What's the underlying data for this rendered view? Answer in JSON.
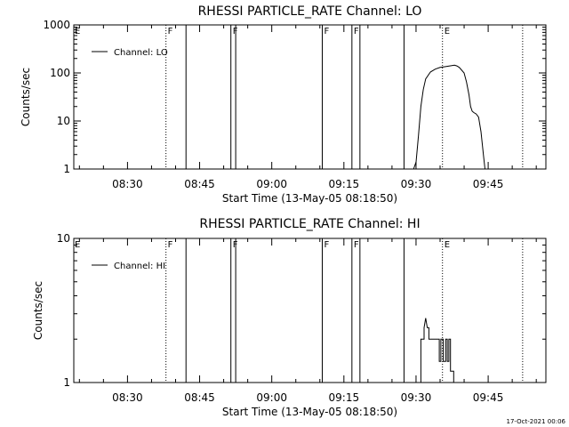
{
  "footer": {
    "timestamp": "17-Oct-2021 00:06"
  },
  "chart_data": [
    {
      "type": "line",
      "title": "RHESSI PARTICLE_RATE Channel: LO",
      "xlabel": "Start Time (13-May-05 08:18:50)",
      "ylabel": "Counts/sec",
      "yscale": "log",
      "ylim": [
        1,
        1000
      ],
      "xlim": [
        "08:18:50",
        "09:57:00"
      ],
      "x_ticks": [
        "08:30",
        "08:45",
        "09:00",
        "09:15",
        "09:30",
        "09:45"
      ],
      "y_ticks": [
        "1",
        "10",
        "100",
        "1000"
      ],
      "grid": false,
      "legend": {
        "position": "top-left",
        "entries": [
          "Channel: LO"
        ]
      },
      "series": [
        {
          "name": "Channel: LO",
          "x": [
            "09:29:30",
            "09:30:00",
            "09:30:30",
            "09:31:00",
            "09:31:30",
            "09:32:00",
            "09:33:00",
            "09:34:00",
            "09:35:00",
            "09:36:00",
            "09:37:00",
            "09:38:00",
            "09:38:30",
            "09:39:00",
            "09:40:00",
            "09:40:30",
            "09:41:00",
            "09:41:20",
            "09:41:40",
            "09:42:00",
            "09:42:30",
            "09:43:00",
            "09:43:30",
            "09:44:00",
            "09:44:20"
          ],
          "values": [
            1,
            1.4,
            5,
            20,
            45,
            75,
            105,
            120,
            130,
            135,
            140,
            145,
            140,
            130,
            100,
            65,
            35,
            20,
            16,
            15,
            14,
            12,
            6,
            2,
            1
          ]
        }
      ],
      "event_lines": [
        {
          "time": "08:38:00",
          "style": "dotted",
          "label": "F"
        },
        {
          "time": "08:42:10",
          "style": "solid",
          "label": ""
        },
        {
          "time": "08:51:30",
          "style": "solid",
          "label": "F"
        },
        {
          "time": "08:52:30",
          "style": "solid",
          "label": ""
        },
        {
          "time": "09:10:30",
          "style": "solid",
          "label": "F"
        },
        {
          "time": "09:16:40",
          "style": "solid",
          "label": "F"
        },
        {
          "time": "09:18:20",
          "style": "solid",
          "label": ""
        },
        {
          "time": "09:27:30",
          "style": "solid",
          "label": ""
        },
        {
          "time": "09:35:30",
          "style": "dotted",
          "label": "E"
        },
        {
          "time": "09:52:10",
          "style": "dotted",
          "label": ""
        }
      ],
      "corner_label": "E"
    },
    {
      "type": "line",
      "title": "RHESSI PARTICLE_RATE Channel: HI",
      "xlabel": "Start Time (13-May-05 08:18:50)",
      "ylabel": "Counts/sec",
      "yscale": "log",
      "ylim": [
        1,
        10
      ],
      "xlim": [
        "08:18:50",
        "09:57:00"
      ],
      "x_ticks": [
        "08:30",
        "08:45",
        "09:00",
        "09:15",
        "09:30",
        "09:45"
      ],
      "y_ticks": [
        "1",
        "10"
      ],
      "grid": false,
      "legend": {
        "position": "top-left",
        "entries": [
          "Channel: HI"
        ]
      },
      "series": [
        {
          "name": "Channel: HI",
          "x": [
            "09:30:00",
            "09:31:00",
            "09:31:00",
            "09:31:40",
            "09:31:40",
            "09:32:00",
            "09:32:20",
            "09:32:40",
            "09:32:40",
            "09:34:50",
            "09:34:50",
            "09:35:10",
            "09:35:10",
            "09:35:40",
            "09:35:40",
            "09:36:10",
            "09:36:10",
            "09:36:30",
            "09:36:30",
            "09:36:50",
            "09:36:50",
            "09:37:10",
            "09:37:10",
            "09:37:50",
            "09:37:50"
          ],
          "values": [
            1,
            1,
            2,
            2,
            2.4,
            2.8,
            2.4,
            2.4,
            2,
            2,
            1.4,
            1.4,
            2,
            2,
            1.4,
            1.4,
            2,
            2,
            1.4,
            1.4,
            2,
            2,
            1.2,
            1.2,
            1
          ]
        }
      ],
      "event_lines": [
        {
          "time": "08:38:00",
          "style": "dotted",
          "label": "F"
        },
        {
          "time": "08:42:10",
          "style": "solid",
          "label": ""
        },
        {
          "time": "08:51:30",
          "style": "solid",
          "label": "F"
        },
        {
          "time": "08:52:30",
          "style": "solid",
          "label": ""
        },
        {
          "time": "09:10:30",
          "style": "solid",
          "label": "F"
        },
        {
          "time": "09:16:40",
          "style": "solid",
          "label": "F"
        },
        {
          "time": "09:18:20",
          "style": "solid",
          "label": ""
        },
        {
          "time": "09:27:30",
          "style": "solid",
          "label": ""
        },
        {
          "time": "09:35:30",
          "style": "dotted",
          "label": "E"
        },
        {
          "time": "09:52:10",
          "style": "dotted",
          "label": ""
        }
      ],
      "corner_label": "E"
    }
  ]
}
